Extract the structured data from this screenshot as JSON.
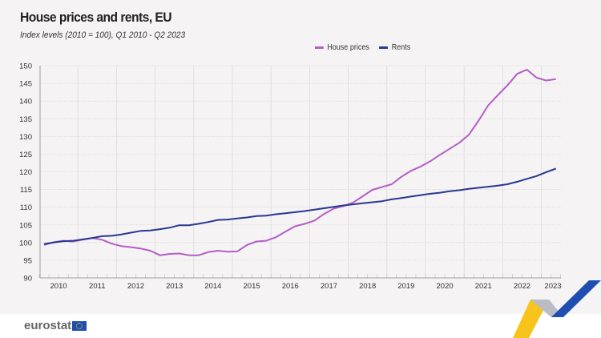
{
  "chart_data": {
    "type": "line",
    "title": "House prices and rents, EU",
    "subtitle": "Index levels (2010 = 100), Q1 2010 - Q2 2023",
    "xlabel": "",
    "ylabel": "",
    "ylim": [
      90,
      150
    ],
    "yticks": [
      90,
      95,
      100,
      105,
      110,
      115,
      120,
      125,
      130,
      135,
      140,
      145,
      150
    ],
    "x_tick_labels": [
      "2010",
      "2011",
      "2012",
      "2013",
      "2014",
      "2015",
      "2016",
      "2017",
      "2018",
      "2019",
      "2020",
      "2021",
      "2022",
      "2023"
    ],
    "x_start": "2010Q1",
    "x_end": "2023Q2",
    "grid": true,
    "legend_position": "top-center",
    "series": [
      {
        "name": "House prices",
        "color": "#b45ec6",
        "values": [
          99.3,
          100.1,
          100.5,
          100.3,
          100.8,
          101.3,
          100.8,
          99.7,
          99.0,
          98.7,
          98.3,
          97.7,
          96.4,
          96.8,
          96.9,
          96.4,
          96.4,
          97.3,
          97.7,
          97.4,
          97.5,
          99.3,
          100.3,
          100.5,
          101.5,
          103.1,
          104.6,
          105.3,
          106.2,
          108.1,
          109.6,
          110.3,
          111.3,
          113.1,
          114.9,
          115.7,
          116.5,
          118.6,
          120.3,
          121.5,
          123.0,
          124.8,
          126.5,
          128.2,
          130.5,
          134.5,
          138.8,
          141.7,
          144.5,
          147.7,
          148.9,
          146.6,
          145.8,
          146.2
        ]
      },
      {
        "name": "Rents",
        "color": "#28388f",
        "values": [
          99.6,
          100.0,
          100.4,
          100.5,
          100.9,
          101.3,
          101.8,
          101.9,
          102.3,
          102.8,
          103.3,
          103.4,
          103.8,
          104.2,
          104.9,
          104.9,
          105.3,
          105.8,
          106.4,
          106.5,
          106.8,
          107.1,
          107.5,
          107.6,
          108.0,
          108.3,
          108.6,
          108.9,
          109.3,
          109.7,
          110.1,
          110.5,
          110.8,
          111.1,
          111.4,
          111.7,
          112.2,
          112.6,
          113.0,
          113.4,
          113.8,
          114.1,
          114.5,
          114.8,
          115.2,
          115.5,
          115.8,
          116.1,
          116.5,
          117.2,
          118.0,
          118.8,
          119.9,
          120.9
        ]
      }
    ]
  },
  "footer": {
    "logo_text": "eurostat"
  }
}
